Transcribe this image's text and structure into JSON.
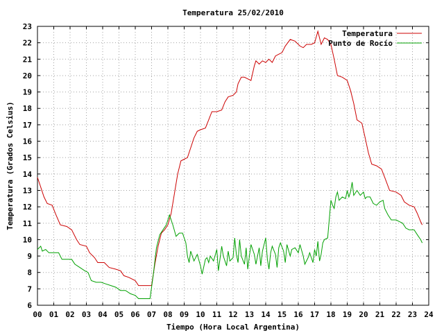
{
  "chart_data": {
    "type": "line",
    "title": "Temperatura 25/02/2010",
    "xlabel": "Tiempo (Hora Local Argentina)",
    "ylabel": "Temperatura (Grados Celsius)",
    "xlim": [
      0,
      24
    ],
    "ylim": [
      6,
      23
    ],
    "xticks": [
      0,
      1,
      2,
      3,
      4,
      5,
      6,
      7,
      8,
      9,
      10,
      11,
      12,
      13,
      14,
      15,
      16,
      17,
      18,
      19,
      20,
      21,
      22,
      23,
      24
    ],
    "xticklabels": [
      "00",
      "01",
      "02",
      "03",
      "04",
      "05",
      "06",
      "07",
      "08",
      "09",
      "10",
      "11",
      "12",
      "13",
      "14",
      "15",
      "16",
      "17",
      "18",
      "19",
      "20",
      "21",
      "22",
      "23",
      "24"
    ],
    "yticks": [
      6,
      7,
      8,
      9,
      10,
      11,
      12,
      13,
      14,
      15,
      16,
      17,
      18,
      19,
      20,
      21,
      22,
      23
    ],
    "grid": true,
    "legend_position": "top-right",
    "series": [
      {
        "name": "Temperatura",
        "color": "#cc0000",
        "points": [
          [
            0,
            13.8
          ],
          [
            0.2,
            13.2
          ],
          [
            0.4,
            12.6
          ],
          [
            0.6,
            12.2
          ],
          [
            0.9,
            12.1
          ],
          [
            1.1,
            11.6
          ],
          [
            1.4,
            10.9
          ],
          [
            1.8,
            10.8
          ],
          [
            2.1,
            10.6
          ],
          [
            2.4,
            10.0
          ],
          [
            2.6,
            9.7
          ],
          [
            3.0,
            9.6
          ],
          [
            3.2,
            9.2
          ],
          [
            3.5,
            8.9
          ],
          [
            3.7,
            8.6
          ],
          [
            4.1,
            8.6
          ],
          [
            4.4,
            8.3
          ],
          [
            4.8,
            8.2
          ],
          [
            5.1,
            8.1
          ],
          [
            5.3,
            7.8
          ],
          [
            5.6,
            7.7
          ],
          [
            6.0,
            7.5
          ],
          [
            6.2,
            7.2
          ],
          [
            6.6,
            7.2
          ],
          [
            7.0,
            7.2
          ],
          [
            7.2,
            8.5
          ],
          [
            7.4,
            9.6
          ],
          [
            7.6,
            10.4
          ],
          [
            7.8,
            10.6
          ],
          [
            8.0,
            10.9
          ],
          [
            8.2,
            11.6
          ],
          [
            8.4,
            12.8
          ],
          [
            8.6,
            14.0
          ],
          [
            8.8,
            14.8
          ],
          [
            9.0,
            14.9
          ],
          [
            9.2,
            15.0
          ],
          [
            9.4,
            15.6
          ],
          [
            9.6,
            16.2
          ],
          [
            9.8,
            16.6
          ],
          [
            10.0,
            16.7
          ],
          [
            10.3,
            16.8
          ],
          [
            10.5,
            17.3
          ],
          [
            10.7,
            17.8
          ],
          [
            11.0,
            17.8
          ],
          [
            11.3,
            17.9
          ],
          [
            11.5,
            18.4
          ],
          [
            11.7,
            18.7
          ],
          [
            12.0,
            18.8
          ],
          [
            12.2,
            19.0
          ],
          [
            12.3,
            19.5
          ],
          [
            12.5,
            19.9
          ],
          [
            12.7,
            19.9
          ],
          [
            12.9,
            19.8
          ],
          [
            13.1,
            19.7
          ],
          [
            13.3,
            20.6
          ],
          [
            13.4,
            20.9
          ],
          [
            13.6,
            20.7
          ],
          [
            13.8,
            20.9
          ],
          [
            14.0,
            20.8
          ],
          [
            14.2,
            21.0
          ],
          [
            14.4,
            20.8
          ],
          [
            14.6,
            21.2
          ],
          [
            14.8,
            21.3
          ],
          [
            15.0,
            21.4
          ],
          [
            15.2,
            21.8
          ],
          [
            15.5,
            22.2
          ],
          [
            15.8,
            22.1
          ],
          [
            16.1,
            21.8
          ],
          [
            16.3,
            21.7
          ],
          [
            16.5,
            21.9
          ],
          [
            16.8,
            21.9
          ],
          [
            17.0,
            22.0
          ],
          [
            17.2,
            22.7
          ],
          [
            17.4,
            21.9
          ],
          [
            17.6,
            22.3
          ],
          [
            17.8,
            22.2
          ],
          [
            18.0,
            21.9
          ],
          [
            18.2,
            21.0
          ],
          [
            18.4,
            20.0
          ],
          [
            18.7,
            19.9
          ],
          [
            19.0,
            19.7
          ],
          [
            19.2,
            19.1
          ],
          [
            19.4,
            18.3
          ],
          [
            19.6,
            17.3
          ],
          [
            19.9,
            17.1
          ],
          [
            20.1,
            16.2
          ],
          [
            20.3,
            15.3
          ],
          [
            20.5,
            14.6
          ],
          [
            20.8,
            14.5
          ],
          [
            21.1,
            14.3
          ],
          [
            21.3,
            13.8
          ],
          [
            21.6,
            13.0
          ],
          [
            22.0,
            12.9
          ],
          [
            22.3,
            12.7
          ],
          [
            22.5,
            12.3
          ],
          [
            22.8,
            12.1
          ],
          [
            23.1,
            12.0
          ],
          [
            23.3,
            11.6
          ],
          [
            23.5,
            11.1
          ],
          [
            23.6,
            10.9
          ]
        ]
      },
      {
        "name": "Punto de Rocío",
        "color": "#00a000",
        "points": [
          [
            0,
            9.4
          ],
          [
            0.2,
            9.6
          ],
          [
            0.3,
            9.3
          ],
          [
            0.5,
            9.4
          ],
          [
            0.7,
            9.2
          ],
          [
            1.0,
            9.2
          ],
          [
            1.3,
            9.2
          ],
          [
            1.5,
            8.8
          ],
          [
            1.8,
            8.8
          ],
          [
            2.1,
            8.8
          ],
          [
            2.3,
            8.5
          ],
          [
            2.6,
            8.3
          ],
          [
            2.9,
            8.1
          ],
          [
            3.1,
            8.0
          ],
          [
            3.3,
            7.5
          ],
          [
            3.6,
            7.4
          ],
          [
            3.9,
            7.4
          ],
          [
            4.2,
            7.3
          ],
          [
            4.5,
            7.2
          ],
          [
            4.8,
            7.1
          ],
          [
            5.1,
            6.9
          ],
          [
            5.4,
            6.9
          ],
          [
            5.7,
            6.7
          ],
          [
            6.0,
            6.6
          ],
          [
            6.2,
            6.4
          ],
          [
            6.5,
            6.4
          ],
          [
            6.9,
            6.4
          ],
          [
            7.1,
            7.8
          ],
          [
            7.3,
            9.5
          ],
          [
            7.5,
            10.3
          ],
          [
            7.7,
            10.6
          ],
          [
            7.9,
            10.9
          ],
          [
            8.1,
            11.5
          ],
          [
            8.3,
            10.9
          ],
          [
            8.5,
            10.2
          ],
          [
            8.7,
            10.4
          ],
          [
            8.9,
            10.4
          ],
          [
            9.1,
            9.8
          ],
          [
            9.2,
            9.0
          ],
          [
            9.3,
            8.6
          ],
          [
            9.4,
            9.3
          ],
          [
            9.6,
            8.7
          ],
          [
            9.8,
            9.1
          ],
          [
            10.0,
            8.4
          ],
          [
            10.1,
            7.9
          ],
          [
            10.3,
            8.8
          ],
          [
            10.4,
            8.9
          ],
          [
            10.5,
            8.6
          ],
          [
            10.6,
            9.0
          ],
          [
            10.8,
            8.7
          ],
          [
            11.0,
            9.4
          ],
          [
            11.1,
            8.1
          ],
          [
            11.3,
            9.6
          ],
          [
            11.4,
            9.0
          ],
          [
            11.6,
            8.4
          ],
          [
            11.7,
            9.3
          ],
          [
            11.8,
            8.7
          ],
          [
            12.0,
            8.9
          ],
          [
            12.1,
            10.1
          ],
          [
            12.2,
            9.1
          ],
          [
            12.3,
            8.6
          ],
          [
            12.4,
            10.0
          ],
          [
            12.5,
            9.0
          ],
          [
            12.7,
            8.5
          ],
          [
            12.8,
            9.5
          ],
          [
            12.9,
            8.2
          ],
          [
            13.0,
            9.0
          ],
          [
            13.1,
            9.7
          ],
          [
            13.3,
            9.1
          ],
          [
            13.4,
            8.5
          ],
          [
            13.6,
            9.5
          ],
          [
            13.7,
            8.4
          ],
          [
            13.8,
            9.3
          ],
          [
            14.0,
            10.1
          ],
          [
            14.1,
            8.8
          ],
          [
            14.2,
            8.2
          ],
          [
            14.3,
            9.2
          ],
          [
            14.4,
            9.6
          ],
          [
            14.6,
            9.1
          ],
          [
            14.7,
            8.3
          ],
          [
            14.8,
            9.5
          ],
          [
            14.9,
            9.8
          ],
          [
            15.1,
            9.3
          ],
          [
            15.2,
            8.6
          ],
          [
            15.3,
            9.7
          ],
          [
            15.5,
            9.0
          ],
          [
            15.6,
            9.4
          ],
          [
            15.8,
            9.5
          ],
          [
            16.0,
            9.2
          ],
          [
            16.1,
            9.7
          ],
          [
            16.3,
            9.0
          ],
          [
            16.4,
            8.5
          ],
          [
            16.6,
            8.9
          ],
          [
            16.7,
            9.2
          ],
          [
            16.9,
            8.6
          ],
          [
            17.0,
            9.4
          ],
          [
            17.1,
            9.0
          ],
          [
            17.2,
            9.9
          ],
          [
            17.3,
            8.7
          ],
          [
            17.4,
            9.1
          ],
          [
            17.5,
            9.8
          ],
          [
            17.6,
            10.0
          ],
          [
            17.8,
            10.1
          ],
          [
            18.0,
            12.4
          ],
          [
            18.1,
            12.1
          ],
          [
            18.2,
            11.9
          ],
          [
            18.3,
            12.6
          ],
          [
            18.4,
            12.9
          ],
          [
            18.5,
            12.4
          ],
          [
            18.7,
            12.6
          ],
          [
            18.9,
            12.5
          ],
          [
            19.0,
            13.0
          ],
          [
            19.1,
            12.6
          ],
          [
            19.2,
            12.9
          ],
          [
            19.3,
            13.5
          ],
          [
            19.4,
            12.7
          ],
          [
            19.6,
            13.0
          ],
          [
            19.8,
            12.7
          ],
          [
            20.0,
            12.9
          ],
          [
            20.1,
            12.5
          ],
          [
            20.2,
            12.6
          ],
          [
            20.4,
            12.6
          ],
          [
            20.6,
            12.2
          ],
          [
            20.8,
            12.1
          ],
          [
            21.0,
            12.3
          ],
          [
            21.2,
            12.4
          ],
          [
            21.3,
            11.9
          ],
          [
            21.5,
            11.5
          ],
          [
            21.7,
            11.2
          ],
          [
            22.0,
            11.2
          ],
          [
            22.2,
            11.1
          ],
          [
            22.4,
            11.0
          ],
          [
            22.6,
            10.7
          ],
          [
            22.8,
            10.6
          ],
          [
            23.1,
            10.6
          ],
          [
            23.3,
            10.3
          ],
          [
            23.5,
            10.0
          ],
          [
            23.6,
            9.8
          ]
        ]
      }
    ]
  }
}
